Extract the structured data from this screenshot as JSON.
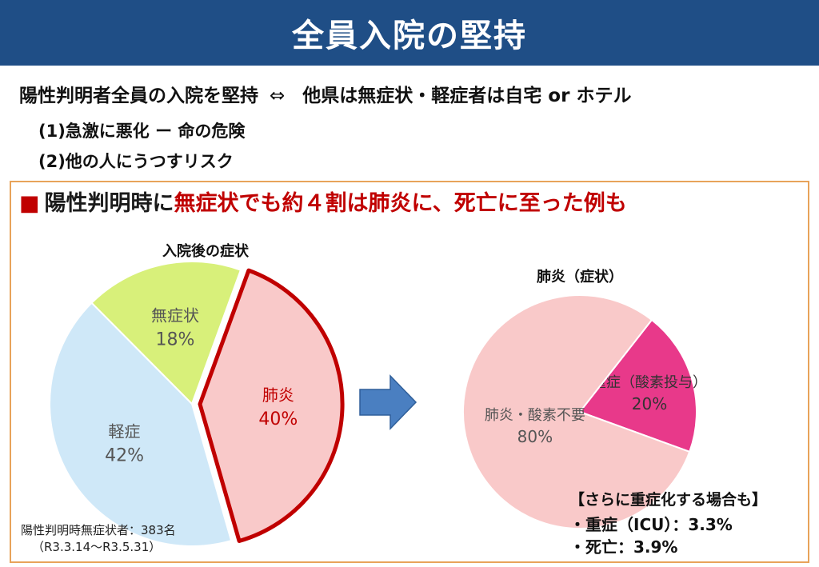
{
  "header": {
    "title": "全員入院の堅持"
  },
  "intro": {
    "lead": "陽性判明者全員の入院を堅持",
    "operator": "⇔",
    "contrast": "他県は無症状・軽症者は自宅 or ホテル",
    "points": [
      "(1)急激に悪化 ー 命の危険",
      "(2)他の人にうつすリスク"
    ]
  },
  "headline": {
    "bullet": "■",
    "part1": "陽性判明時に",
    "part2": "無症状でも約４割は肺炎に、死亡に至った例も"
  },
  "chart_data": [
    {
      "type": "pie",
      "title": "入院後の症状",
      "slices": [
        {
          "label": "肺炎",
          "value": 40,
          "value_label": "40%",
          "color": "#f9c9c9",
          "exploded": true
        },
        {
          "label": "軽症",
          "value": 42,
          "value_label": "42%",
          "color": "#cfe8f8"
        },
        {
          "label": "無症状",
          "value": 18,
          "value_label": "18%",
          "color": "#d8f07a"
        }
      ]
    },
    {
      "type": "pie",
      "title": "肺炎（症状）",
      "slices": [
        {
          "label": "重症（酸素投与）",
          "value": 20,
          "value_label": "20%",
          "color": "#e8398a"
        },
        {
          "label": "肺炎・酸素不要",
          "value": 80,
          "value_label": "80%",
          "color": "#f9c9c9"
        }
      ]
    }
  ],
  "callout": {
    "title": "【さらに重症化する場合も】",
    "items": [
      "・重症（ICU）：3.3%",
      "・死亡：3.9%"
    ]
  },
  "footnote": {
    "line1": "陽性判明時無症状者：383名",
    "line2": "（R3.3.14～R3.5.31）"
  },
  "colors": {
    "title_bar": "#1f4e86",
    "accent_red": "#c00000",
    "panel_border": "#e8a35a",
    "arrow": "#4a7fc1"
  }
}
